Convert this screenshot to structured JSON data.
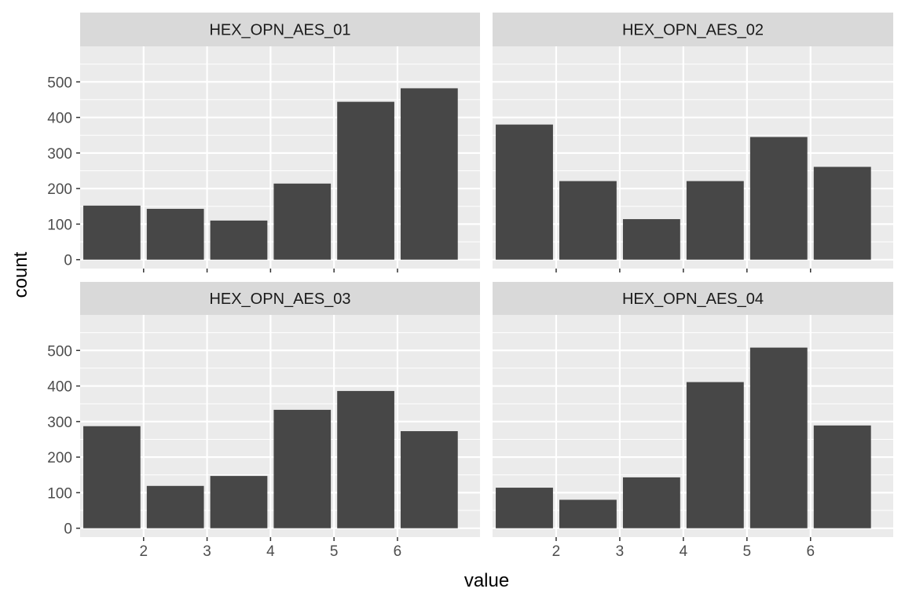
{
  "chart_data": {
    "type": "bar",
    "xlabel": "value",
    "ylabel": "count",
    "x_ticks": [
      2,
      3,
      4,
      5,
      6
    ],
    "y_ticks": [
      0,
      100,
      200,
      300,
      400,
      500
    ],
    "x": [
      1.5,
      2.5,
      3.5,
      4.5,
      5.5,
      6.5
    ],
    "xlim": [
      1.0,
      7.3
    ],
    "ylim": [
      -25,
      600
    ],
    "grid": true,
    "colors": {
      "bar": "#474747",
      "panel_bg": "#ebebeb",
      "strip_bg": "#d9d9d9",
      "grid": "#ffffff",
      "text": "#4d4d4d",
      "axis_title": "#000000"
    },
    "panels": [
      {
        "title": "HEX_OPN_AES_01",
        "values": [
          152,
          143,
          110,
          214,
          444,
          482
        ]
      },
      {
        "title": "HEX_OPN_AES_02",
        "values": [
          380,
          221,
          114,
          221,
          345,
          261
        ]
      },
      {
        "title": "HEX_OPN_AES_03",
        "values": [
          287,
          119,
          147,
          333,
          386,
          273
        ]
      },
      {
        "title": "HEX_OPN_AES_04",
        "values": [
          114,
          80,
          143,
          411,
          508,
          289
        ]
      }
    ]
  }
}
